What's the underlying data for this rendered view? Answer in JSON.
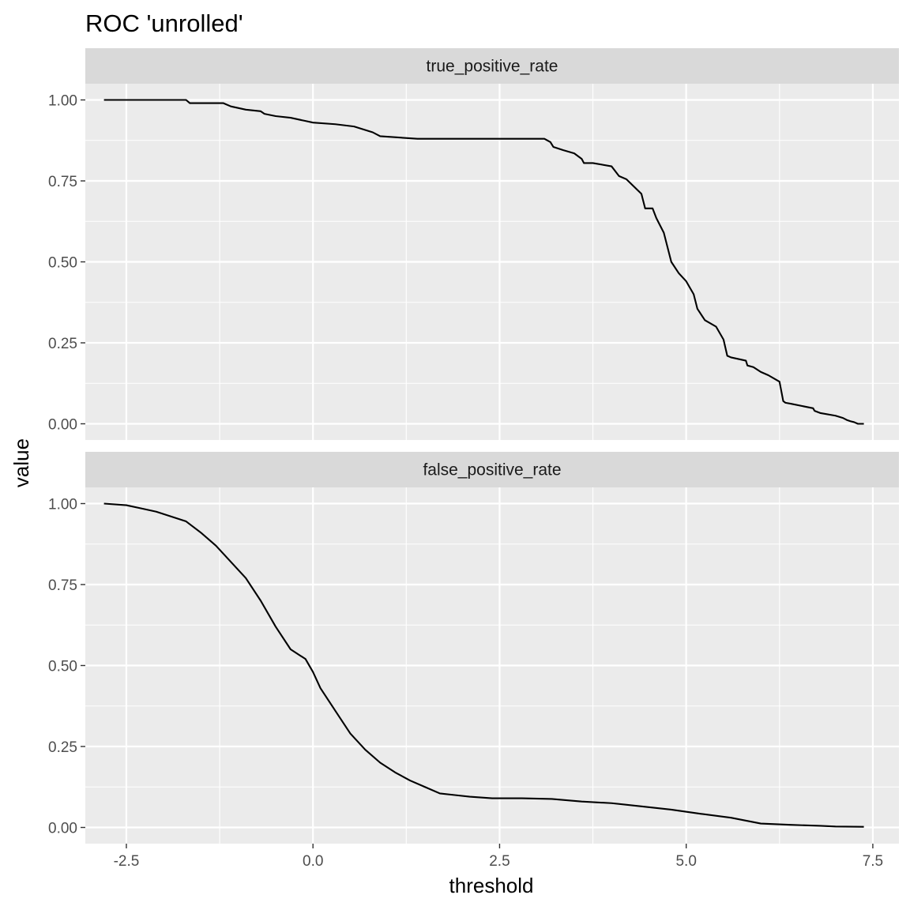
{
  "chart_data": {
    "type": "line",
    "title": "ROC 'unrolled'",
    "xlabel": "threshold",
    "ylabel": "value",
    "xlim": [
      -3.05,
      7.85
    ],
    "ylim": [
      -0.05,
      1.05
    ],
    "x_ticks": [
      -2.5,
      0.0,
      2.5,
      5.0,
      7.5
    ],
    "x_tick_labels": [
      "-2.5",
      "0.0",
      "2.5",
      "5.0",
      "7.5"
    ],
    "y_ticks": [
      0.0,
      0.25,
      0.5,
      0.75,
      1.0
    ],
    "y_tick_labels": [
      "0.00",
      "0.25",
      "0.50",
      "0.75",
      "1.00"
    ],
    "grid": true,
    "panels": [
      {
        "strip": "true_positive_rate",
        "x": [
          -2.8,
          -1.7,
          -1.65,
          -1.2,
          -1.1,
          -0.9,
          -0.7,
          -0.65,
          -0.5,
          -0.3,
          -0.1,
          0.0,
          0.3,
          0.55,
          0.8,
          0.9,
          1.4,
          2.0,
          3.1,
          3.18,
          3.22,
          3.35,
          3.5,
          3.6,
          3.63,
          3.75,
          4.0,
          4.1,
          4.2,
          4.4,
          4.45,
          4.55,
          4.6,
          4.7,
          4.8,
          4.9,
          5.0,
          5.1,
          5.15,
          5.25,
          5.4,
          5.5,
          5.55,
          5.6,
          5.8,
          5.82,
          5.9,
          6.0,
          6.1,
          6.25,
          6.3,
          6.33,
          6.4,
          6.7,
          6.72,
          6.8,
          7.0,
          7.1,
          7.15,
          7.2,
          7.25,
          7.3,
          7.38
        ],
        "y": [
          1.0,
          1.0,
          0.99,
          0.99,
          0.98,
          0.97,
          0.965,
          0.957,
          0.95,
          0.945,
          0.935,
          0.93,
          0.925,
          0.918,
          0.9,
          0.888,
          0.88,
          0.88,
          0.88,
          0.87,
          0.855,
          0.845,
          0.835,
          0.818,
          0.805,
          0.805,
          0.795,
          0.765,
          0.755,
          0.71,
          0.665,
          0.665,
          0.635,
          0.59,
          0.5,
          0.465,
          0.44,
          0.4,
          0.355,
          0.32,
          0.3,
          0.26,
          0.21,
          0.205,
          0.195,
          0.18,
          0.175,
          0.16,
          0.15,
          0.13,
          0.07,
          0.065,
          0.062,
          0.048,
          0.04,
          0.033,
          0.025,
          0.018,
          0.012,
          0.008,
          0.005,
          0.0,
          0.0
        ]
      },
      {
        "strip": "false_positive_rate",
        "x": [
          -2.8,
          -2.5,
          -2.3,
          -2.1,
          -1.9,
          -1.7,
          -1.5,
          -1.3,
          -1.1,
          -0.9,
          -0.7,
          -0.5,
          -0.3,
          -0.1,
          0.0,
          0.1,
          0.3,
          0.5,
          0.7,
          0.9,
          1.1,
          1.3,
          1.5,
          1.7,
          1.9,
          2.1,
          2.4,
          2.8,
          3.2,
          3.6,
          4.0,
          4.4,
          4.8,
          5.2,
          5.6,
          6.0,
          6.4,
          6.8,
          7.0,
          7.38
        ],
        "y": [
          1.0,
          0.995,
          0.985,
          0.975,
          0.96,
          0.945,
          0.91,
          0.87,
          0.82,
          0.77,
          0.7,
          0.62,
          0.55,
          0.52,
          0.48,
          0.43,
          0.36,
          0.29,
          0.24,
          0.2,
          0.17,
          0.145,
          0.125,
          0.105,
          0.1,
          0.095,
          0.09,
          0.09,
          0.088,
          0.08,
          0.075,
          0.065,
          0.055,
          0.042,
          0.03,
          0.012,
          0.008,
          0.005,
          0.003,
          0.002
        ]
      }
    ]
  }
}
